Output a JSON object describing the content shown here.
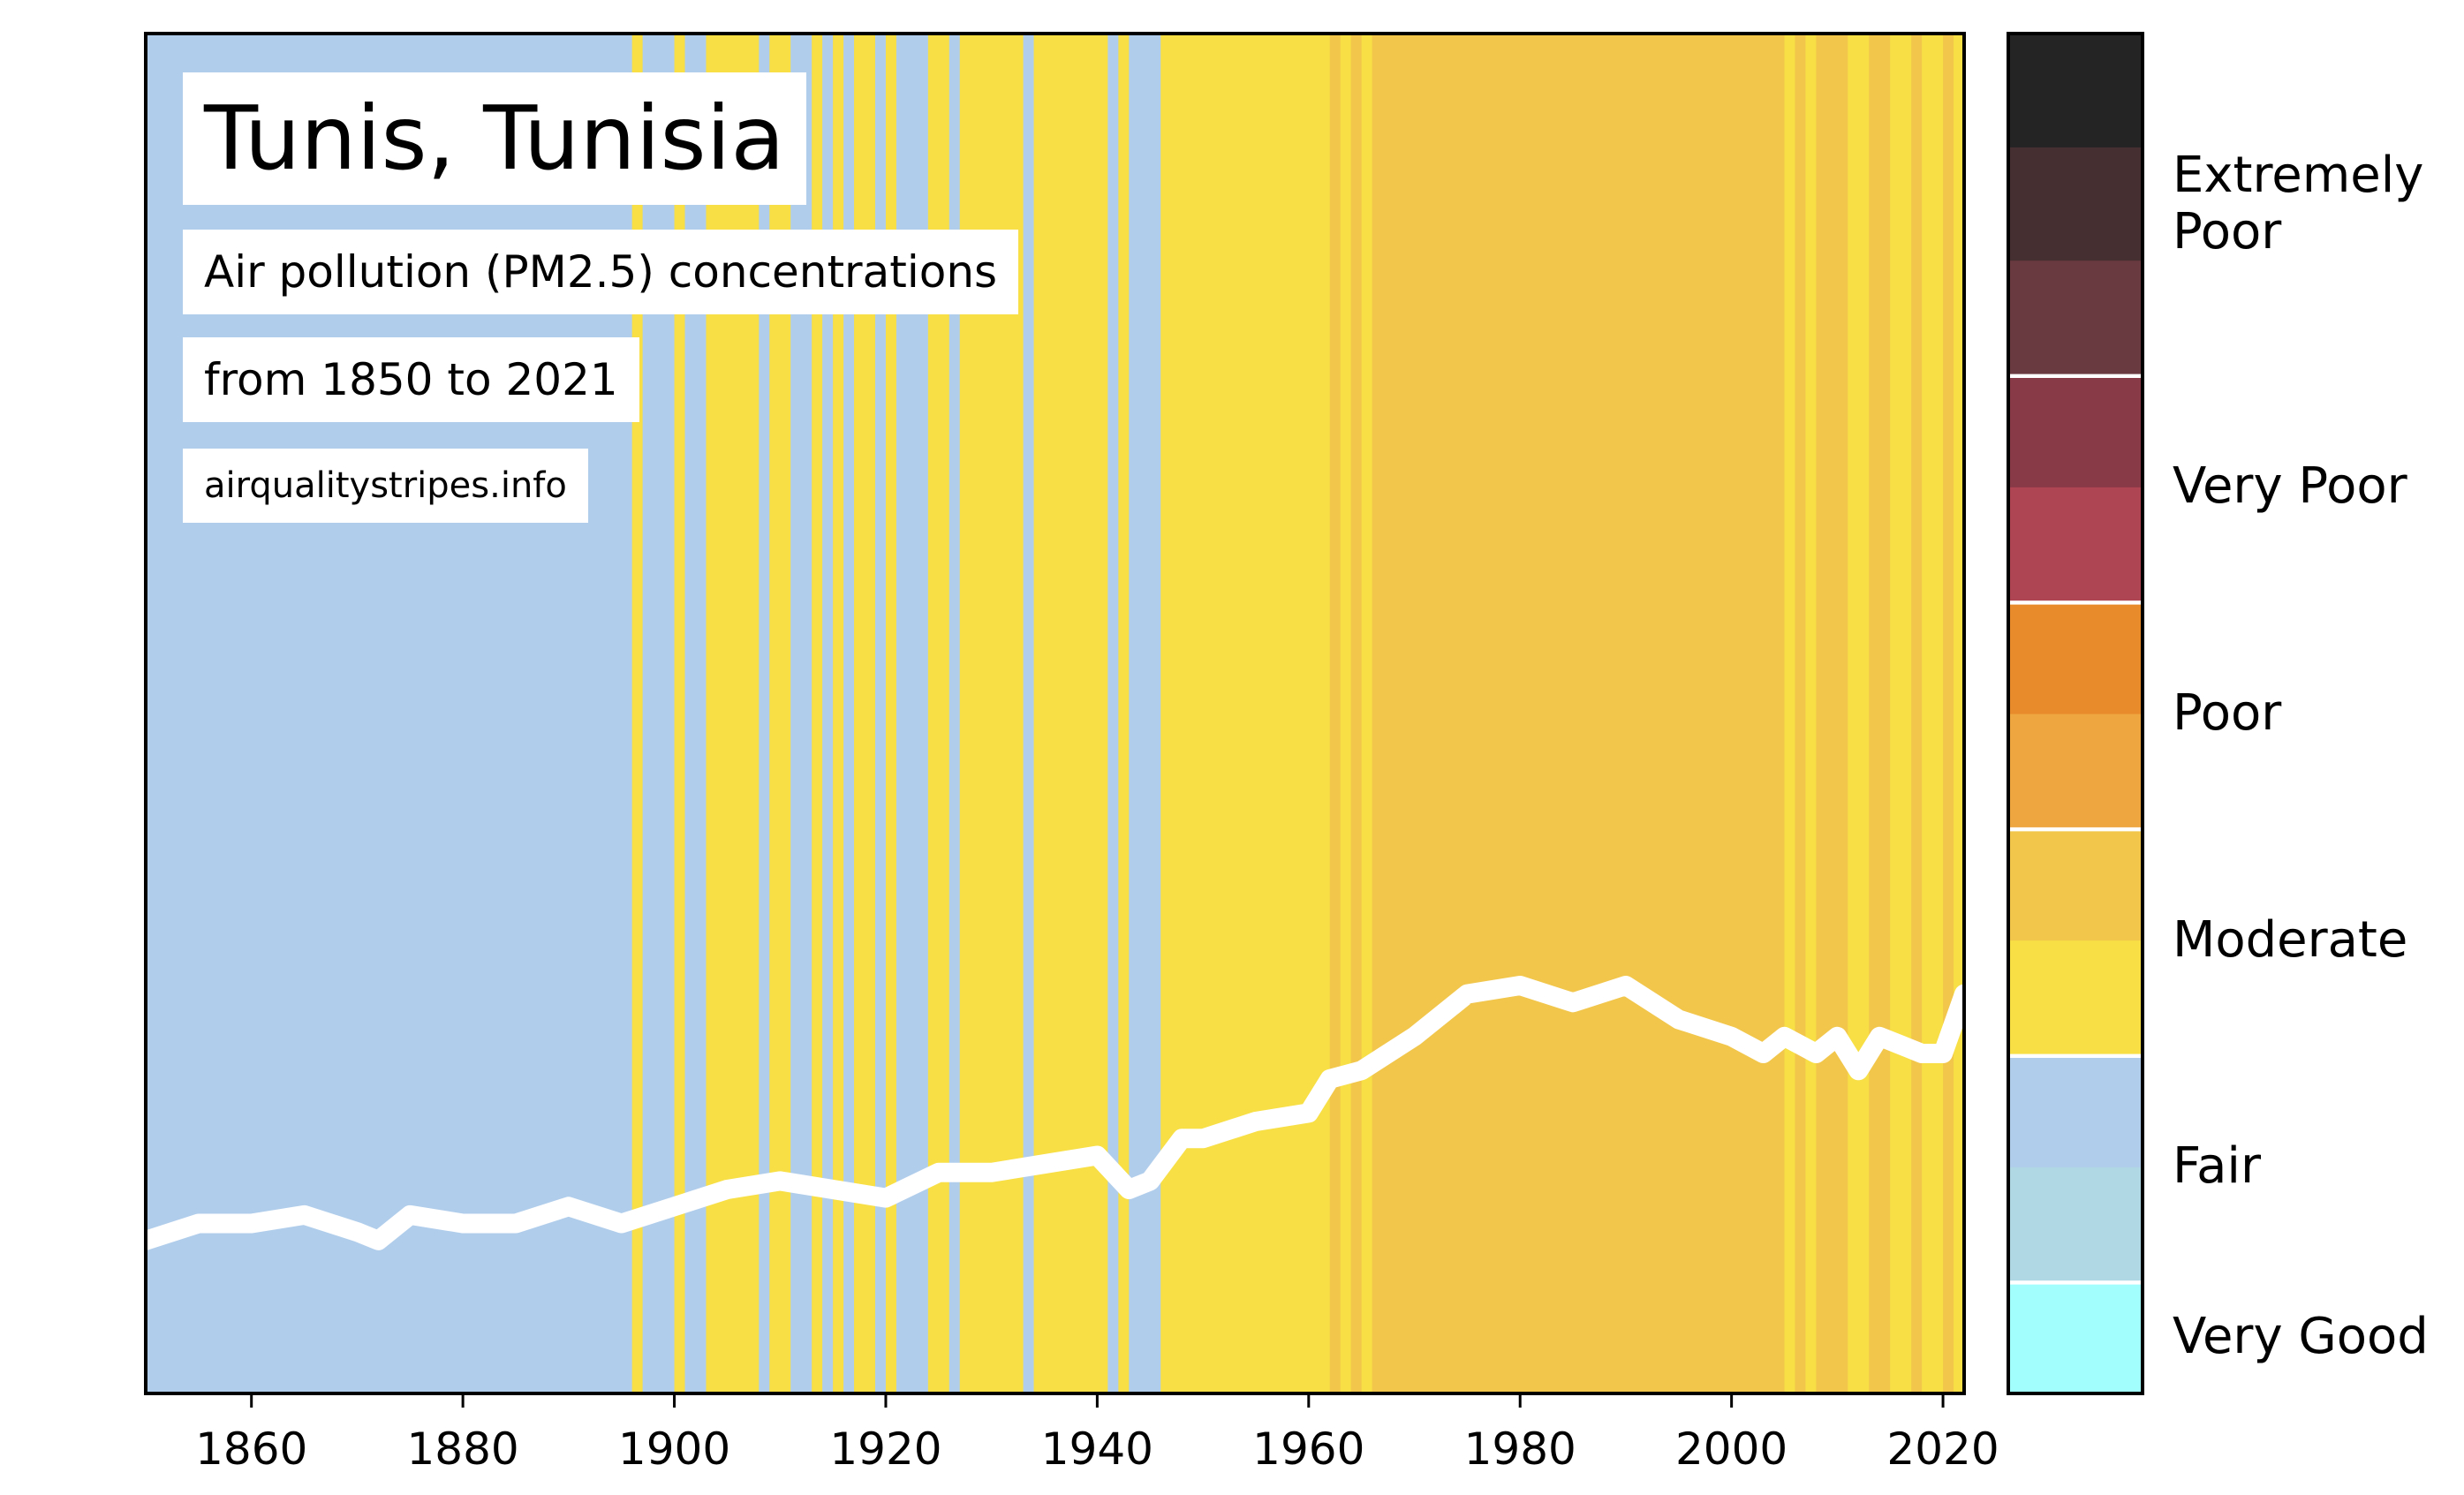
{
  "chart_data": {
    "type": "heatmap",
    "title": "Tunis, Tunisia",
    "subtitle": "Air pollution (PM2.5) concentrations",
    "date_range_text": "from 1850 to 2021",
    "source": "airqualitystripes.info",
    "xlim": [
      1850,
      2022
    ],
    "x_ticks": [
      1860,
      1880,
      1900,
      1920,
      1940,
      1960,
      1980,
      2000,
      2020
    ],
    "category_colors": {
      "fair": "#b0cdeb",
      "moderate_low": "#f7df45",
      "moderate_high": "#f1c64b"
    },
    "stripes": [
      {
        "from": 1850,
        "to": 1896,
        "category": "fair"
      },
      {
        "from": 1896,
        "to": 1897,
        "category": "moderate_low"
      },
      {
        "from": 1897,
        "to": 1900,
        "category": "fair"
      },
      {
        "from": 1900,
        "to": 1901,
        "category": "moderate_low"
      },
      {
        "from": 1901,
        "to": 1903,
        "category": "fair"
      },
      {
        "from": 1903,
        "to": 1908,
        "category": "moderate_low"
      },
      {
        "from": 1908,
        "to": 1909,
        "category": "fair"
      },
      {
        "from": 1909,
        "to": 1911,
        "category": "moderate_low"
      },
      {
        "from": 1911,
        "to": 1913,
        "category": "fair"
      },
      {
        "from": 1913,
        "to": 1914,
        "category": "moderate_low"
      },
      {
        "from": 1914,
        "to": 1915,
        "category": "fair"
      },
      {
        "from": 1915,
        "to": 1916,
        "category": "moderate_low"
      },
      {
        "from": 1916,
        "to": 1917,
        "category": "fair"
      },
      {
        "from": 1917,
        "to": 1919,
        "category": "moderate_low"
      },
      {
        "from": 1919,
        "to": 1920,
        "category": "fair"
      },
      {
        "from": 1920,
        "to": 1921,
        "category": "moderate_low"
      },
      {
        "from": 1921,
        "to": 1924,
        "category": "fair"
      },
      {
        "from": 1924,
        "to": 1926,
        "category": "moderate_low"
      },
      {
        "from": 1926,
        "to": 1927,
        "category": "fair"
      },
      {
        "from": 1927,
        "to": 1933,
        "category": "moderate_low"
      },
      {
        "from": 1933,
        "to": 1934,
        "category": "fair"
      },
      {
        "from": 1934,
        "to": 1941,
        "category": "moderate_low"
      },
      {
        "from": 1941,
        "to": 1942,
        "category": "fair"
      },
      {
        "from": 1942,
        "to": 1943,
        "category": "moderate_low"
      },
      {
        "from": 1943,
        "to": 1946,
        "category": "fair"
      },
      {
        "from": 1946,
        "to": 1962,
        "category": "moderate_low"
      },
      {
        "from": 1962,
        "to": 1963,
        "category": "moderate_high"
      },
      {
        "from": 1963,
        "to": 1964,
        "category": "moderate_low"
      },
      {
        "from": 1964,
        "to": 1965,
        "category": "moderate_high"
      },
      {
        "from": 1965,
        "to": 1966,
        "category": "moderate_low"
      },
      {
        "from": 1966,
        "to": 2005,
        "category": "moderate_high"
      },
      {
        "from": 2005,
        "to": 2006,
        "category": "moderate_low"
      },
      {
        "from": 2006,
        "to": 2007,
        "category": "moderate_high"
      },
      {
        "from": 2007,
        "to": 2008,
        "category": "moderate_low"
      },
      {
        "from": 2008,
        "to": 2011,
        "category": "moderate_high"
      },
      {
        "from": 2011,
        "to": 2013,
        "category": "moderate_low"
      },
      {
        "from": 2013,
        "to": 2015,
        "category": "moderate_high"
      },
      {
        "from": 2015,
        "to": 2017,
        "category": "moderate_low"
      },
      {
        "from": 2017,
        "to": 2018,
        "category": "moderate_high"
      },
      {
        "from": 2018,
        "to": 2020,
        "category": "moderate_low"
      },
      {
        "from": 2020,
        "to": 2021,
        "category": "moderate_high"
      },
      {
        "from": 2021,
        "to": 2022,
        "category": "moderate_low"
      }
    ],
    "trend_line": {
      "color": "#ffffff",
      "x": [
        1850,
        1855,
        1860,
        1865,
        1870,
        1872,
        1875,
        1880,
        1885,
        1890,
        1895,
        1900,
        1905,
        1910,
        1915,
        1920,
        1925,
        1930,
        1935,
        1940,
        1943,
        1945,
        1948,
        1950,
        1955,
        1960,
        1962,
        1965,
        1970,
        1975,
        1980,
        1985,
        1990,
        1995,
        2000,
        2003,
        2005,
        2008,
        2010,
        2012,
        2014,
        2016,
        2018,
        2020,
        2022
      ],
      "y": [
        18,
        20,
        20,
        21,
        19,
        18,
        21,
        20,
        20,
        22,
        20,
        22,
        24,
        25,
        24,
        23,
        26,
        26,
        27,
        28,
        24,
        25,
        30,
        30,
        32,
        33,
        37,
        38,
        42,
        47,
        48,
        46,
        48,
        44,
        42,
        40,
        42,
        40,
        42,
        38,
        42,
        41,
        40,
        40,
        47
      ]
    },
    "scale_bands": [
      {
        "label": "Very Good",
        "colors": [
          "#a2fdfd"
        ]
      },
      {
        "label": "Fair",
        "colors": [
          "#b0d8e4",
          "#b0cdeb"
        ]
      },
      {
        "label": "Moderate",
        "colors": [
          "#f7df45",
          "#f1c64b"
        ]
      },
      {
        "label": "Poor",
        "colors": [
          "#eea641",
          "#e88b2a"
        ]
      },
      {
        "label": "Very Poor",
        "colors": [
          "#ae4552",
          "#893a47"
        ]
      },
      {
        "label": "Extremely\nPoor",
        "colors": [
          "#693a3f",
          "#452f31",
          "#242424"
        ]
      }
    ]
  }
}
